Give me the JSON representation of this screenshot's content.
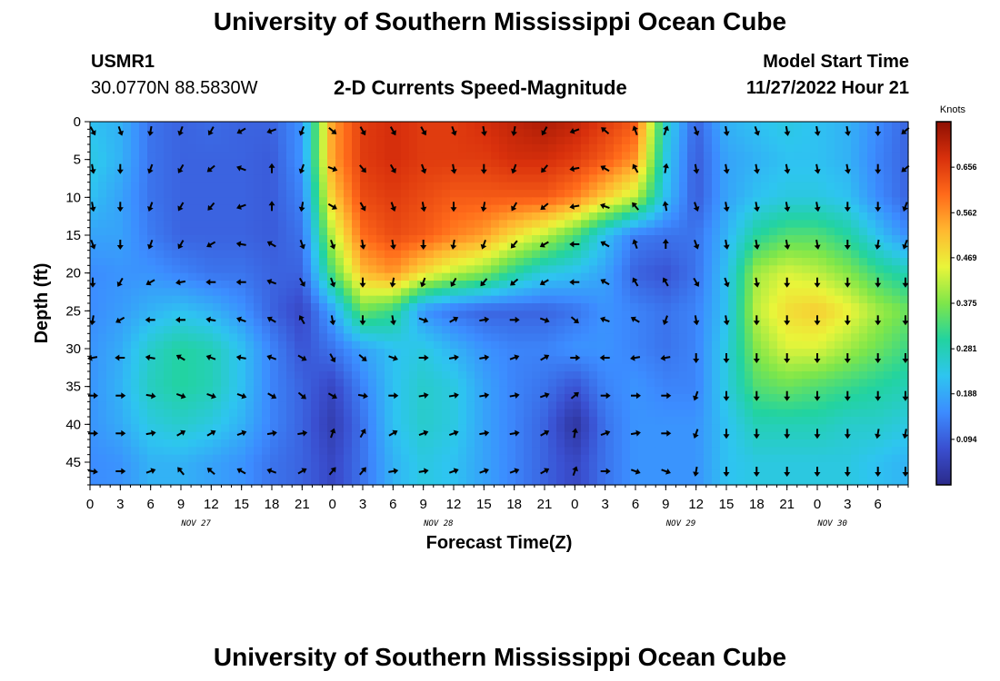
{
  "header": {
    "title": "University of Southern Mississippi Ocean Cube",
    "station": "USMR1",
    "coords": "30.0770N  88.5830W",
    "subtitle": "2-D Currents Speed-Magnitude",
    "model_label": "Model Start Time",
    "model_time": "11/27/2022 Hour 21"
  },
  "footer": {
    "title": "University of Southern Mississippi Ocean Cube"
  },
  "colors": {
    "scale": [
      "#2b2a8a",
      "#3a4fd0",
      "#3c8cff",
      "#2ec5f0",
      "#22d3a0",
      "#7ee64a",
      "#e9f53a",
      "#ffb830",
      "#ff6a1a",
      "#d8300c",
      "#8e0f02"
    ]
  },
  "chart_data": {
    "type": "heatmap",
    "title": "2-D Currents Speed-Magnitude",
    "xlabel": "Forecast Time(Z)",
    "ylabel": "Depth (ft)",
    "x_hours_range": [
      0,
      81
    ],
    "x_tick_hours": [
      0,
      3,
      6,
      9,
      12,
      15,
      18,
      21,
      24,
      27,
      30,
      33,
      36,
      39,
      42,
      45,
      48,
      51,
      54,
      57,
      60,
      63,
      66,
      69,
      72,
      75,
      78,
      81
    ],
    "x_tick_labels": [
      "0",
      "3",
      "6",
      "9",
      "12",
      "15",
      "18",
      "21",
      "0",
      "3",
      "6",
      "9",
      "12",
      "15",
      "18",
      "21",
      "0",
      "3",
      "6",
      "9",
      "12",
      "15",
      "18",
      "21",
      "0",
      "3",
      "6"
    ],
    "day_labels": [
      {
        "label": "NOV 27",
        "hour": 10.5
      },
      {
        "label": "NOV 28",
        "hour": 34.5
      },
      {
        "label": "NOV 29",
        "hour": 58.5
      },
      {
        "label": "NOV 30",
        "hour": 73.5
      }
    ],
    "y_range": [
      0,
      48
    ],
    "y_ticks": [
      0,
      5,
      10,
      15,
      20,
      25,
      30,
      35,
      40,
      45
    ],
    "colorbar": {
      "label": "Knots",
      "min": 0.0,
      "max": 0.75,
      "tick_values": [
        0.094,
        0.188,
        0.281,
        0.375,
        0.469,
        0.562,
        0.656
      ],
      "tick_labels": [
        "0.094",
        "0.188",
        "0.281",
        "0.375",
        "0.469",
        "0.562",
        "0.656"
      ]
    },
    "speed_knots": {
      "depths_ft": [
        0,
        5,
        10,
        15,
        20,
        25,
        30,
        35,
        40,
        45
      ],
      "hours": [
        0,
        3,
        6,
        9,
        12,
        15,
        18,
        21,
        24,
        27,
        30,
        33,
        36,
        39,
        42,
        45,
        48,
        51,
        54,
        57,
        60,
        63,
        66,
        69,
        72,
        75,
        78,
        81
      ],
      "rows": [
        [
          0.22,
          0.2,
          0.12,
          0.1,
          0.11,
          0.1,
          0.1,
          0.16,
          0.55,
          0.66,
          0.68,
          0.66,
          0.66,
          0.68,
          0.7,
          0.72,
          0.7,
          0.66,
          0.62,
          0.26,
          0.1,
          0.2,
          0.22,
          0.24,
          0.22,
          0.2,
          0.15,
          0.1
        ],
        [
          0.24,
          0.2,
          0.12,
          0.1,
          0.1,
          0.1,
          0.09,
          0.16,
          0.55,
          0.66,
          0.68,
          0.66,
          0.66,
          0.66,
          0.68,
          0.68,
          0.66,
          0.62,
          0.56,
          0.24,
          0.09,
          0.18,
          0.2,
          0.22,
          0.22,
          0.2,
          0.14,
          0.1
        ],
        [
          0.22,
          0.18,
          0.12,
          0.1,
          0.1,
          0.1,
          0.09,
          0.14,
          0.5,
          0.64,
          0.66,
          0.64,
          0.62,
          0.62,
          0.62,
          0.62,
          0.58,
          0.5,
          0.42,
          0.22,
          0.09,
          0.18,
          0.22,
          0.24,
          0.24,
          0.22,
          0.15,
          0.1
        ],
        [
          0.18,
          0.18,
          0.13,
          0.1,
          0.1,
          0.1,
          0.09,
          0.12,
          0.42,
          0.6,
          0.64,
          0.62,
          0.58,
          0.55,
          0.48,
          0.42,
          0.34,
          0.22,
          0.13,
          0.12,
          0.12,
          0.2,
          0.3,
          0.34,
          0.34,
          0.3,
          0.22,
          0.15
        ],
        [
          0.15,
          0.16,
          0.16,
          0.14,
          0.12,
          0.12,
          0.1,
          0.1,
          0.34,
          0.52,
          0.56,
          0.48,
          0.42,
          0.38,
          0.3,
          0.24,
          0.22,
          0.18,
          0.1,
          0.08,
          0.12,
          0.22,
          0.4,
          0.44,
          0.42,
          0.38,
          0.32,
          0.28
        ],
        [
          0.15,
          0.17,
          0.2,
          0.22,
          0.2,
          0.16,
          0.1,
          0.06,
          0.18,
          0.36,
          0.32,
          0.16,
          0.12,
          0.1,
          0.1,
          0.1,
          0.12,
          0.16,
          0.14,
          0.12,
          0.14,
          0.22,
          0.42,
          0.48,
          0.5,
          0.46,
          0.4,
          0.36
        ],
        [
          0.16,
          0.19,
          0.26,
          0.3,
          0.28,
          0.22,
          0.14,
          0.08,
          0.12,
          0.18,
          0.22,
          0.24,
          0.2,
          0.16,
          0.14,
          0.14,
          0.16,
          0.16,
          0.14,
          0.12,
          0.14,
          0.24,
          0.38,
          0.44,
          0.44,
          0.4,
          0.36,
          0.32
        ],
        [
          0.16,
          0.2,
          0.27,
          0.3,
          0.28,
          0.22,
          0.14,
          0.1,
          0.06,
          0.14,
          0.22,
          0.26,
          0.24,
          0.18,
          0.14,
          0.12,
          0.08,
          0.14,
          0.16,
          0.14,
          0.14,
          0.24,
          0.34,
          0.36,
          0.34,
          0.32,
          0.3,
          0.28
        ],
        [
          0.16,
          0.19,
          0.24,
          0.26,
          0.24,
          0.2,
          0.14,
          0.1,
          0.04,
          0.12,
          0.22,
          0.26,
          0.24,
          0.18,
          0.14,
          0.1,
          0.02,
          0.12,
          0.16,
          0.16,
          0.16,
          0.22,
          0.28,
          0.28,
          0.28,
          0.26,
          0.26,
          0.24
        ],
        [
          0.15,
          0.16,
          0.2,
          0.2,
          0.18,
          0.16,
          0.12,
          0.1,
          0.06,
          0.12,
          0.2,
          0.24,
          0.22,
          0.18,
          0.14,
          0.1,
          0.06,
          0.12,
          0.16,
          0.16,
          0.16,
          0.22,
          0.24,
          0.24,
          0.24,
          0.24,
          0.22,
          0.2
        ]
      ]
    },
    "arrow_dirs_deg": {
      "note": "direction current flows toward, degrees clockwise from north; rows by depth, cols by 3-hour steps",
      "rows": [
        [
          150,
          160,
          190,
          200,
          210,
          240,
          250,
          200,
          130,
          150,
          150,
          150,
          160,
          170,
          190,
          210,
          250,
          310,
          340,
          20,
          160,
          170,
          160,
          170,
          170,
          170,
          180,
          230
        ],
        [
          170,
          180,
          200,
          210,
          230,
          290,
          0,
          200,
          110,
          140,
          150,
          160,
          170,
          180,
          200,
          220,
          260,
          300,
          330,
          10,
          170,
          170,
          170,
          170,
          170,
          170,
          180,
          230
        ],
        [
          170,
          180,
          200,
          210,
          220,
          250,
          0,
          190,
          120,
          150,
          160,
          170,
          180,
          190,
          210,
          230,
          260,
          290,
          320,
          350,
          160,
          170,
          170,
          170,
          170,
          180,
          180,
          200
        ],
        [
          160,
          180,
          200,
          210,
          240,
          280,
          300,
          160,
          160,
          170,
          170,
          180,
          190,
          200,
          220,
          240,
          270,
          300,
          340,
          0,
          160,
          170,
          170,
          170,
          170,
          180,
          190,
          200
        ],
        [
          180,
          210,
          240,
          260,
          270,
          270,
          290,
          150,
          160,
          180,
          190,
          200,
          210,
          220,
          230,
          240,
          270,
          300,
          330,
          330,
          150,
          160,
          170,
          180,
          180,
          180,
          180,
          180
        ],
        [
          190,
          240,
          270,
          270,
          280,
          290,
          300,
          330,
          170,
          180,
          170,
          110,
          60,
          80,
          90,
          110,
          130,
          290,
          300,
          200,
          170,
          170,
          180,
          180,
          180,
          180,
          180,
          180
        ],
        [
          260,
          270,
          280,
          300,
          290,
          280,
          290,
          120,
          150,
          130,
          110,
          90,
          80,
          80,
          70,
          60,
          90,
          270,
          260,
          260,
          180,
          180,
          180,
          180,
          180,
          180,
          180,
          180
        ],
        [
          90,
          90,
          100,
          110,
          110,
          110,
          120,
          130,
          120,
          100,
          90,
          80,
          80,
          80,
          80,
          70,
          50,
          90,
          90,
          90,
          200,
          180,
          180,
          180,
          180,
          180,
          180,
          180
        ],
        [
          90,
          90,
          80,
          60,
          60,
          70,
          80,
          80,
          20,
          30,
          60,
          70,
          70,
          80,
          80,
          60,
          10,
          70,
          80,
          90,
          200,
          180,
          180,
          180,
          180,
          180,
          190,
          190
        ],
        [
          100,
          90,
          70,
          320,
          310,
          300,
          290,
          60,
          40,
          40,
          80,
          80,
          70,
          70,
          70,
          60,
          20,
          90,
          110,
          110,
          190,
          180,
          180,
          180,
          180,
          180,
          180,
          180
        ]
      ]
    }
  }
}
